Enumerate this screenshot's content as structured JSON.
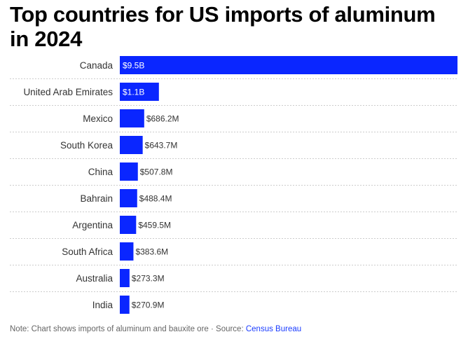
{
  "chart_data": {
    "type": "bar",
    "orientation": "horizontal",
    "title": "Top countries for US imports of aluminum in 2024",
    "categories": [
      "Canada",
      "United Arab Emirates",
      "Mexico",
      "South Korea",
      "China",
      "Bahrain",
      "Argentina",
      "South Africa",
      "Australia",
      "India"
    ],
    "values": [
      9500000000,
      1100000000,
      686200000,
      643700000,
      507800000,
      488400000,
      459500000,
      383600000,
      273300000,
      270900000
    ],
    "value_labels": [
      "$9.5B",
      "$1.1B",
      "$686.2M",
      "$643.7M",
      "$507.8M",
      "$488.4M",
      "$459.5M",
      "$383.6M",
      "$273.3M",
      "$270.9M"
    ],
    "bar_color": "#0a26ff",
    "label_inside_color": "#ffffff",
    "label_outside_color": "#333333",
    "grid": "dashed row separators",
    "legend": "none"
  },
  "footer": {
    "note_text": "Note: Chart shows imports of aluminum and bauxite ore · Source: ",
    "source_link": "Census Bureau"
  }
}
